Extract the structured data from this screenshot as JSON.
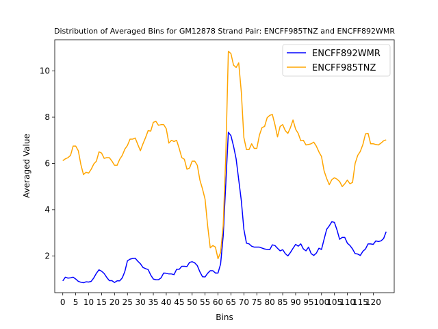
{
  "chart_data": {
    "type": "line",
    "title": "Distribution of Averaged Bins for GM12878 Strand Pair: ENCFF985TNZ and ENCFF892WMR",
    "xlabel": "Bins",
    "ylabel": "Averaged Value",
    "xlim": [
      -3.1,
      128.1
    ],
    "ylim": [
      0.41,
      11.35
    ],
    "x_ticks": [
      0,
      5,
      10,
      15,
      20,
      25,
      30,
      35,
      40,
      45,
      50,
      55,
      60,
      65,
      70,
      75,
      80,
      85,
      90,
      95,
      100,
      105,
      110,
      115,
      120
    ],
    "y_ticks": [
      2,
      4,
      6,
      8,
      10
    ],
    "legend_position": "upper right",
    "grid": false,
    "series": [
      {
        "name": "ENCFF892WMR",
        "color": "#0000ff",
        "values": [
          0.92,
          1.08,
          1.04,
          1.05,
          1.08,
          1.0,
          0.9,
          0.86,
          0.84,
          0.88,
          0.87,
          0.9,
          1.05,
          1.25,
          1.4,
          1.34,
          1.24,
          1.07,
          0.93,
          0.93,
          0.85,
          0.92,
          0.92,
          1.05,
          1.33,
          1.79,
          1.86,
          1.89,
          1.9,
          1.77,
          1.66,
          1.5,
          1.45,
          1.41,
          1.17,
          1.0,
          0.97,
          0.97,
          1.05,
          1.26,
          1.25,
          1.22,
          1.22,
          1.19,
          1.42,
          1.42,
          1.55,
          1.55,
          1.54,
          1.72,
          1.75,
          1.7,
          1.58,
          1.31,
          1.1,
          1.09,
          1.25,
          1.36,
          1.36,
          1.26,
          1.26,
          1.65,
          2.85,
          5.1,
          7.35,
          7.2,
          6.75,
          6.2,
          5.3,
          4.4,
          3.15,
          2.55,
          2.52,
          2.42,
          2.38,
          2.38,
          2.38,
          2.34,
          2.3,
          2.28,
          2.27,
          2.48,
          2.45,
          2.33,
          2.22,
          2.27,
          2.1,
          2.0,
          2.15,
          2.33,
          2.5,
          2.42,
          2.52,
          2.3,
          2.22,
          2.38,
          2.1,
          2.02,
          2.12,
          2.33,
          2.28,
          2.72,
          3.15,
          3.3,
          3.48,
          3.45,
          3.12,
          2.72,
          2.8,
          2.8,
          2.55,
          2.45,
          2.3,
          2.1,
          2.08,
          2.02,
          2.2,
          2.3,
          2.52,
          2.52,
          2.5,
          2.65,
          2.62,
          2.65,
          2.75,
          3.05
        ]
      },
      {
        "name": "ENCFF985TNZ",
        "color": "#ffa500",
        "values": [
          6.12,
          6.2,
          6.25,
          6.35,
          6.75,
          6.75,
          6.55,
          5.95,
          5.52,
          5.62,
          5.58,
          5.75,
          5.98,
          6.1,
          6.5,
          6.45,
          6.22,
          6.25,
          6.25,
          6.1,
          5.92,
          5.92,
          6.18,
          6.35,
          6.62,
          6.78,
          7.05,
          7.05,
          7.1,
          6.82,
          6.55,
          6.85,
          7.12,
          7.42,
          7.4,
          7.78,
          7.82,
          7.65,
          7.68,
          7.68,
          7.5,
          6.88,
          7.0,
          6.95,
          7.0,
          6.65,
          6.25,
          6.18,
          5.75,
          5.8,
          6.1,
          6.1,
          5.92,
          5.28,
          4.9,
          4.45,
          3.3,
          2.35,
          2.45,
          2.38,
          1.88,
          2.15,
          3.3,
          6.3,
          10.85,
          10.75,
          10.25,
          10.15,
          10.35,
          9.1,
          7.12,
          6.6,
          6.6,
          6.85,
          6.65,
          6.65,
          7.22,
          7.55,
          7.6,
          7.98,
          8.08,
          8.12,
          7.68,
          7.15,
          7.6,
          7.68,
          7.42,
          7.3,
          7.55,
          7.88,
          7.48,
          7.3,
          6.98,
          7.0,
          6.8,
          6.82,
          6.85,
          6.92,
          6.75,
          6.5,
          6.3,
          5.68,
          5.35,
          5.08,
          5.3,
          5.38,
          5.32,
          5.22,
          5.0,
          5.12,
          5.28,
          5.12,
          5.18,
          6.0,
          6.35,
          6.52,
          6.82,
          7.28,
          7.3,
          6.85,
          6.85,
          6.82,
          6.8,
          6.88,
          6.98,
          7.02
        ]
      }
    ]
  }
}
